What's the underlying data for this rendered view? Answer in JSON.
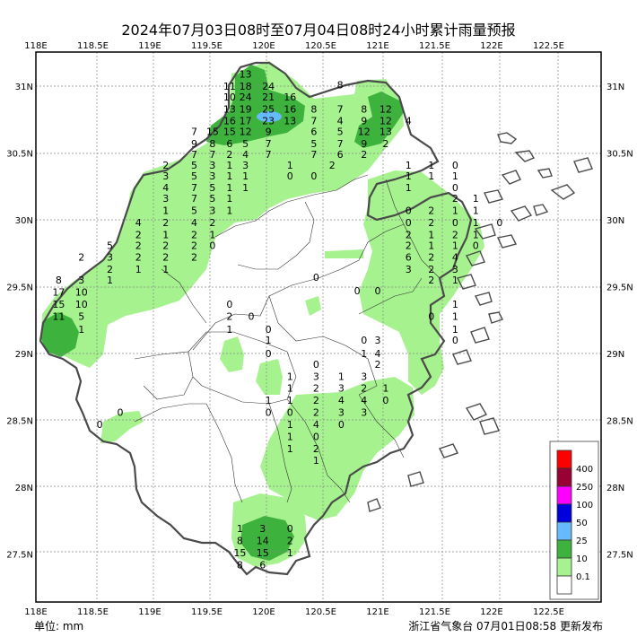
{
  "title": "2024年07月03日08时至07月04日08时24小时累计雨量预报",
  "unit_label": "单位: mm",
  "footer": "浙江省气象台 07月01日08:58 更新发布",
  "axes": {
    "x_ticks": [
      "118E",
      "118.5E",
      "119E",
      "119.5E",
      "120E",
      "120.5E",
      "121E",
      "121.5E",
      "122E",
      "122.5E"
    ],
    "y_ticks": [
      "31N",
      "30.5N",
      "30N",
      "29.5N",
      "29N",
      "28.5N",
      "28N",
      "27.5N"
    ]
  },
  "legend": [
    {
      "label": "400",
      "color": "#ff0000"
    },
    {
      "label": "250",
      "color": "#990033"
    },
    {
      "label": "100",
      "color": "#ff00ff"
    },
    {
      "label": "50",
      "color": "#0000dd"
    },
    {
      "label": "25",
      "color": "#66bbff"
    },
    {
      "label": "10",
      "color": "#3db23d"
    },
    {
      "label": "0.1",
      "color": "#a6f28f"
    },
    {
      "label": "",
      "color": "#ffffff"
    }
  ],
  "stations": [
    {
      "v": "13",
      "lon": 119.84,
      "lat": 31.09
    },
    {
      "v": "11",
      "lon": 119.7,
      "lat": 31.0
    },
    {
      "v": "18",
      "lon": 119.84,
      "lat": 31.0
    },
    {
      "v": "24",
      "lon": 120.04,
      "lat": 31.0
    },
    {
      "v": "10",
      "lon": 119.7,
      "lat": 30.92
    },
    {
      "v": "24",
      "lon": 119.84,
      "lat": 30.92
    },
    {
      "v": "21",
      "lon": 120.04,
      "lat": 30.92
    },
    {
      "v": "16",
      "lon": 120.23,
      "lat": 30.92
    },
    {
      "v": "13",
      "lon": 119.7,
      "lat": 30.83
    },
    {
      "v": "19",
      "lon": 119.84,
      "lat": 30.83
    },
    {
      "v": "25",
      "lon": 120.04,
      "lat": 30.83
    },
    {
      "v": "16",
      "lon": 120.23,
      "lat": 30.83
    },
    {
      "v": "16",
      "lon": 119.7,
      "lat": 30.74
    },
    {
      "v": "17",
      "lon": 119.84,
      "lat": 30.74
    },
    {
      "v": "23",
      "lon": 120.04,
      "lat": 30.74
    },
    {
      "v": "13",
      "lon": 120.23,
      "lat": 30.74
    },
    {
      "v": "7",
      "lon": 119.39,
      "lat": 30.66
    },
    {
      "v": "15",
      "lon": 119.55,
      "lat": 30.66
    },
    {
      "v": "15",
      "lon": 119.7,
      "lat": 30.66
    },
    {
      "v": "12",
      "lon": 119.84,
      "lat": 30.66
    },
    {
      "v": "9",
      "lon": 120.04,
      "lat": 30.66
    },
    {
      "v": "9",
      "lon": 119.39,
      "lat": 30.57
    },
    {
      "v": "8",
      "lon": 119.55,
      "lat": 30.57
    },
    {
      "v": "6",
      "lon": 119.7,
      "lat": 30.57
    },
    {
      "v": "5",
      "lon": 119.84,
      "lat": 30.57
    },
    {
      "v": "7",
      "lon": 120.04,
      "lat": 30.57
    },
    {
      "v": "7",
      "lon": 119.39,
      "lat": 30.49
    },
    {
      "v": "7",
      "lon": 119.55,
      "lat": 30.49
    },
    {
      "v": "2",
      "lon": 119.7,
      "lat": 30.49
    },
    {
      "v": "4",
      "lon": 119.84,
      "lat": 30.49
    },
    {
      "v": "7",
      "lon": 120.04,
      "lat": 30.49
    },
    {
      "v": "8",
      "lon": 120.67,
      "lat": 31.01
    },
    {
      "v": "8",
      "lon": 120.44,
      "lat": 30.83
    },
    {
      "v": "7",
      "lon": 120.67,
      "lat": 30.83
    },
    {
      "v": "8",
      "lon": 120.88,
      "lat": 30.83
    },
    {
      "v": "12",
      "lon": 121.07,
      "lat": 30.83
    },
    {
      "v": "7",
      "lon": 120.44,
      "lat": 30.74
    },
    {
      "v": "4",
      "lon": 120.67,
      "lat": 30.74
    },
    {
      "v": "9",
      "lon": 120.88,
      "lat": 30.74
    },
    {
      "v": "12",
      "lon": 121.07,
      "lat": 30.74
    },
    {
      "v": "4",
      "lon": 121.27,
      "lat": 30.74
    },
    {
      "v": "6",
      "lon": 120.44,
      "lat": 30.66
    },
    {
      "v": "5",
      "lon": 120.67,
      "lat": 30.66
    },
    {
      "v": "12",
      "lon": 120.88,
      "lat": 30.66
    },
    {
      "v": "13",
      "lon": 121.07,
      "lat": 30.66
    },
    {
      "v": "5",
      "lon": 120.44,
      "lat": 30.57
    },
    {
      "v": "7",
      "lon": 120.67,
      "lat": 30.57
    },
    {
      "v": "9",
      "lon": 120.88,
      "lat": 30.57
    },
    {
      "v": "2",
      "lon": 121.07,
      "lat": 30.57
    },
    {
      "v": "7",
      "lon": 120.44,
      "lat": 30.49
    },
    {
      "v": "6",
      "lon": 120.67,
      "lat": 30.49
    },
    {
      "v": "2",
      "lon": 120.88,
      "lat": 30.49
    },
    {
      "v": "2",
      "lon": 119.14,
      "lat": 30.41
    },
    {
      "v": "5",
      "lon": 119.39,
      "lat": 30.41
    },
    {
      "v": "3",
      "lon": 119.55,
      "lat": 30.41
    },
    {
      "v": "1",
      "lon": 119.7,
      "lat": 30.41
    },
    {
      "v": "3",
      "lon": 119.84,
      "lat": 30.41
    },
    {
      "v": "1",
      "lon": 120.23,
      "lat": 30.41
    },
    {
      "v": "2",
      "lon": 120.6,
      "lat": 30.41
    },
    {
      "v": "3",
      "lon": 119.14,
      "lat": 30.33
    },
    {
      "v": "5",
      "lon": 119.39,
      "lat": 30.33
    },
    {
      "v": "3",
      "lon": 119.55,
      "lat": 30.33
    },
    {
      "v": "1",
      "lon": 119.7,
      "lat": 30.33
    },
    {
      "v": "1",
      "lon": 119.84,
      "lat": 30.33
    },
    {
      "v": "0",
      "lon": 120.23,
      "lat": 30.33
    },
    {
      "v": "0",
      "lon": 120.44,
      "lat": 30.33
    },
    {
      "v": "4",
      "lon": 119.14,
      "lat": 30.24
    },
    {
      "v": "7",
      "lon": 119.39,
      "lat": 30.24
    },
    {
      "v": "5",
      "lon": 119.55,
      "lat": 30.24
    },
    {
      "v": "1",
      "lon": 119.7,
      "lat": 30.24
    },
    {
      "v": "1",
      "lon": 119.84,
      "lat": 30.24
    },
    {
      "v": "3",
      "lon": 119.14,
      "lat": 30.16
    },
    {
      "v": "7",
      "lon": 119.39,
      "lat": 30.16
    },
    {
      "v": "5",
      "lon": 119.55,
      "lat": 30.16
    },
    {
      "v": "1",
      "lon": 119.7,
      "lat": 30.16
    },
    {
      "v": "1",
      "lon": 119.14,
      "lat": 30.07
    },
    {
      "v": "5",
      "lon": 119.39,
      "lat": 30.07
    },
    {
      "v": "3",
      "lon": 119.55,
      "lat": 30.07
    },
    {
      "v": "1",
      "lon": 119.7,
      "lat": 30.07
    },
    {
      "v": "4",
      "lon": 118.9,
      "lat": 29.98
    },
    {
      "v": "2",
      "lon": 119.14,
      "lat": 29.98
    },
    {
      "v": "4",
      "lon": 119.39,
      "lat": 29.98
    },
    {
      "v": "2",
      "lon": 119.55,
      "lat": 29.98
    },
    {
      "v": "2",
      "lon": 118.9,
      "lat": 29.89
    },
    {
      "v": "1",
      "lon": 119.14,
      "lat": 29.89
    },
    {
      "v": "2",
      "lon": 119.39,
      "lat": 29.89
    },
    {
      "v": "1",
      "lon": 119.55,
      "lat": 29.89
    },
    {
      "v": "5",
      "lon": 118.65,
      "lat": 29.81
    },
    {
      "v": "2",
      "lon": 118.9,
      "lat": 29.81
    },
    {
      "v": "2",
      "lon": 119.14,
      "lat": 29.81
    },
    {
      "v": "2",
      "lon": 119.39,
      "lat": 29.81
    },
    {
      "v": "0",
      "lon": 119.55,
      "lat": 29.81
    },
    {
      "v": "2",
      "lon": 118.4,
      "lat": 29.72
    },
    {
      "v": "3",
      "lon": 118.65,
      "lat": 29.72
    },
    {
      "v": "2",
      "lon": 118.9,
      "lat": 29.72
    },
    {
      "v": "2",
      "lon": 119.14,
      "lat": 29.72
    },
    {
      "v": "2",
      "lon": 119.39,
      "lat": 29.72
    },
    {
      "v": "2",
      "lon": 118.65,
      "lat": 29.63
    },
    {
      "v": "1",
      "lon": 118.9,
      "lat": 29.63
    },
    {
      "v": "1",
      "lon": 119.14,
      "lat": 29.63
    },
    {
      "v": "3",
      "lon": 118.4,
      "lat": 29.55
    },
    {
      "v": "1",
      "lon": 118.65,
      "lat": 29.55
    },
    {
      "v": "8",
      "lon": 118.2,
      "lat": 29.55
    },
    {
      "v": "17",
      "lon": 118.2,
      "lat": 29.46
    },
    {
      "v": "10",
      "lon": 118.4,
      "lat": 29.46
    },
    {
      "v": "15",
      "lon": 118.2,
      "lat": 29.37
    },
    {
      "v": "10",
      "lon": 118.4,
      "lat": 29.37
    },
    {
      "v": "11",
      "lon": 118.2,
      "lat": 29.28
    },
    {
      "v": "5",
      "lon": 118.4,
      "lat": 29.28
    },
    {
      "v": "1",
      "lon": 118.4,
      "lat": 29.18
    },
    {
      "v": "0",
      "lon": 119.7,
      "lat": 29.37
    },
    {
      "v": "2",
      "lon": 119.7,
      "lat": 29.28
    },
    {
      "v": "0",
      "lon": 119.89,
      "lat": 29.28
    },
    {
      "v": "1",
      "lon": 119.7,
      "lat": 29.18
    },
    {
      "v": "0",
      "lon": 120.04,
      "lat": 29.18
    },
    {
      "v": "1",
      "lon": 120.04,
      "lat": 29.1
    },
    {
      "v": "0",
      "lon": 120.04,
      "lat": 29.0
    },
    {
      "v": "0",
      "lon": 120.46,
      "lat": 29.57
    },
    {
      "v": "0",
      "lon": 120.82,
      "lat": 29.47
    },
    {
      "v": "0",
      "lon": 121.0,
      "lat": 29.47
    },
    {
      "v": "1",
      "lon": 121.27,
      "lat": 30.41
    },
    {
      "v": "1",
      "lon": 121.47,
      "lat": 30.41
    },
    {
      "v": "0",
      "lon": 121.68,
      "lat": 30.41
    },
    {
      "v": "1",
      "lon": 121.27,
      "lat": 30.33
    },
    {
      "v": "1",
      "lon": 121.47,
      "lat": 30.33
    },
    {
      "v": "1",
      "lon": 121.68,
      "lat": 30.33
    },
    {
      "v": "1",
      "lon": 121.27,
      "lat": 30.24
    },
    {
      "v": "0",
      "lon": 121.68,
      "lat": 30.24
    },
    {
      "v": "2",
      "lon": 121.68,
      "lat": 30.16
    },
    {
      "v": "1",
      "lon": 121.86,
      "lat": 30.16
    },
    {
      "v": "0",
      "lon": 121.27,
      "lat": 30.07
    },
    {
      "v": "2",
      "lon": 121.47,
      "lat": 30.07
    },
    {
      "v": "1",
      "lon": 121.68,
      "lat": 30.07
    },
    {
      "v": "1",
      "lon": 121.86,
      "lat": 30.07
    },
    {
      "v": "0",
      "lon": 121.27,
      "lat": 29.98
    },
    {
      "v": "2",
      "lon": 121.47,
      "lat": 29.98
    },
    {
      "v": "0",
      "lon": 121.68,
      "lat": 29.98
    },
    {
      "v": "1",
      "lon": 121.86,
      "lat": 29.98
    },
    {
      "v": "0",
      "lon": 122.07,
      "lat": 29.98
    },
    {
      "v": "2",
      "lon": 121.27,
      "lat": 29.89
    },
    {
      "v": "1",
      "lon": 121.47,
      "lat": 29.89
    },
    {
      "v": "2",
      "lon": 121.68,
      "lat": 29.89
    },
    {
      "v": "1",
      "lon": 121.86,
      "lat": 29.89
    },
    {
      "v": "2",
      "lon": 121.27,
      "lat": 29.81
    },
    {
      "v": "1",
      "lon": 121.47,
      "lat": 29.81
    },
    {
      "v": "1",
      "lon": 121.68,
      "lat": 29.81
    },
    {
      "v": "0",
      "lon": 121.86,
      "lat": 29.81
    },
    {
      "v": "6",
      "lon": 121.27,
      "lat": 29.72
    },
    {
      "v": "2",
      "lon": 121.47,
      "lat": 29.72
    },
    {
      "v": "4",
      "lon": 121.68,
      "lat": 29.72
    },
    {
      "v": "3",
      "lon": 121.27,
      "lat": 29.63
    },
    {
      "v": "2",
      "lon": 121.47,
      "lat": 29.63
    },
    {
      "v": "3",
      "lon": 121.68,
      "lat": 29.63
    },
    {
      "v": "2",
      "lon": 121.47,
      "lat": 29.55
    },
    {
      "v": "1",
      "lon": 121.68,
      "lat": 29.55
    },
    {
      "v": "1",
      "lon": 121.68,
      "lat": 29.37
    },
    {
      "v": "0",
      "lon": 121.47,
      "lat": 29.28
    },
    {
      "v": "1",
      "lon": 121.68,
      "lat": 29.28
    },
    {
      "v": "1",
      "lon": 121.68,
      "lat": 29.18
    },
    {
      "v": "0",
      "lon": 121.68,
      "lat": 29.1
    },
    {
      "v": "0",
      "lon": 120.88,
      "lat": 29.1
    },
    {
      "v": "3",
      "lon": 121.0,
      "lat": 29.1
    },
    {
      "v": "1",
      "lon": 120.88,
      "lat": 29.0
    },
    {
      "v": "4",
      "lon": 121.0,
      "lat": 29.0
    },
    {
      "v": "0",
      "lon": 120.46,
      "lat": 28.92
    },
    {
      "v": "2",
      "lon": 121.0,
      "lat": 28.92
    },
    {
      "v": "1",
      "lon": 120.23,
      "lat": 28.83
    },
    {
      "v": "3",
      "lon": 120.46,
      "lat": 28.83
    },
    {
      "v": "1",
      "lon": 120.68,
      "lat": 28.83
    },
    {
      "v": "3",
      "lon": 120.88,
      "lat": 28.83
    },
    {
      "v": "1",
      "lon": 120.23,
      "lat": 28.74
    },
    {
      "v": "2",
      "lon": 120.46,
      "lat": 28.74
    },
    {
      "v": "3",
      "lon": 120.68,
      "lat": 28.74
    },
    {
      "v": "2",
      "lon": 120.88,
      "lat": 28.74
    },
    {
      "v": "1",
      "lon": 121.07,
      "lat": 28.74
    },
    {
      "v": "1",
      "lon": 120.04,
      "lat": 28.65
    },
    {
      "v": "1",
      "lon": 120.23,
      "lat": 28.65
    },
    {
      "v": "2",
      "lon": 120.46,
      "lat": 28.65
    },
    {
      "v": "4",
      "lon": 120.68,
      "lat": 28.65
    },
    {
      "v": "4",
      "lon": 120.88,
      "lat": 28.65
    },
    {
      "v": "0",
      "lon": 121.07,
      "lat": 28.65
    },
    {
      "v": "0",
      "lon": 120.04,
      "lat": 28.56
    },
    {
      "v": "0",
      "lon": 120.23,
      "lat": 28.56
    },
    {
      "v": "2",
      "lon": 120.46,
      "lat": 28.56
    },
    {
      "v": "3",
      "lon": 120.68,
      "lat": 28.56
    },
    {
      "v": "3",
      "lon": 120.88,
      "lat": 28.56
    },
    {
      "v": "1",
      "lon": 120.23,
      "lat": 28.47
    },
    {
      "v": "4",
      "lon": 120.46,
      "lat": 28.47
    },
    {
      "v": "0",
      "lon": 120.68,
      "lat": 28.47
    },
    {
      "v": "1",
      "lon": 120.23,
      "lat": 28.38
    },
    {
      "v": "0",
      "lon": 120.46,
      "lat": 28.38
    },
    {
      "v": "1",
      "lon": 120.23,
      "lat": 28.29
    },
    {
      "v": "2",
      "lon": 120.46,
      "lat": 28.29
    },
    {
      "v": "1",
      "lon": 120.46,
      "lat": 28.2
    },
    {
      "v": "1",
      "lon": 119.79,
      "lat": 27.69
    },
    {
      "v": "3",
      "lon": 119.99,
      "lat": 27.69
    },
    {
      "v": "0",
      "lon": 120.23,
      "lat": 27.69
    },
    {
      "v": "8",
      "lon": 119.79,
      "lat": 27.6
    },
    {
      "v": "14",
      "lon": 119.99,
      "lat": 27.6
    },
    {
      "v": "2",
      "lon": 120.23,
      "lat": 27.6
    },
    {
      "v": "15",
      "lon": 119.79,
      "lat": 27.51
    },
    {
      "v": "15",
      "lon": 119.99,
      "lat": 27.51
    },
    {
      "v": "1",
      "lon": 120.23,
      "lat": 27.51
    },
    {
      "v": "8",
      "lon": 119.79,
      "lat": 27.42
    },
    {
      "v": "6",
      "lon": 119.99,
      "lat": 27.42
    },
    {
      "v": "0",
      "lon": 118.74,
      "lat": 28.56
    },
    {
      "v": "0",
      "lon": 118.56,
      "lat": 28.47
    }
  ]
}
